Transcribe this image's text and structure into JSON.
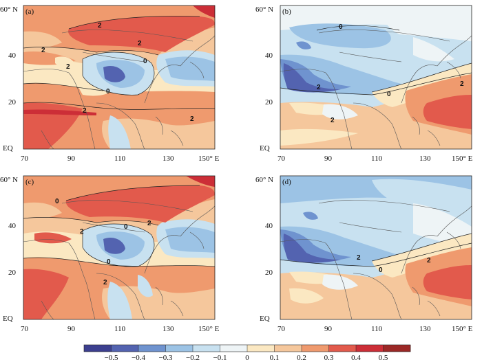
{
  "chart_data": {
    "type": "heatmap",
    "description_units": "anomaly",
    "panels": [
      {
        "id": "a",
        "tag": "(a)",
        "lat_ticks": [
          "60° N",
          "40",
          "20",
          "EQ"
        ],
        "lon_ticks": [
          "70",
          "90",
          "110",
          "130",
          "150° E"
        ],
        "contour_labels": [
          "2",
          "2",
          "2",
          "0",
          "0",
          "2",
          "2",
          "2"
        ],
        "lon_range": [
          70,
          150
        ],
        "lat_range": [
          0,
          60
        ]
      },
      {
        "id": "b",
        "tag": "(b)",
        "lat_ticks": [
          "60° N",
          "40",
          "20",
          "EQ"
        ],
        "lon_ticks": [
          "70",
          "90",
          "110",
          "130",
          "150° E"
        ],
        "contour_labels": [
          "0",
          "2",
          "0",
          "2",
          "2"
        ],
        "lon_range": [
          70,
          150
        ],
        "lat_range": [
          0,
          60
        ]
      },
      {
        "id": "c",
        "tag": "(c)",
        "lat_ticks": [
          "60° N",
          "40",
          "20",
          "EQ"
        ],
        "lon_ticks": [
          "70",
          "90",
          "110",
          "130",
          "150° E"
        ],
        "contour_labels": [
          "0",
          "2",
          "0",
          "0",
          "2",
          "2"
        ],
        "lon_range": [
          70,
          150
        ],
        "lat_range": [
          0,
          60
        ]
      },
      {
        "id": "d",
        "tag": "(d)",
        "lat_ticks": [
          "60° N",
          "40",
          "20",
          "EQ"
        ],
        "lon_ticks": [
          "70",
          "90",
          "110",
          "130",
          "150° E"
        ],
        "contour_labels": [
          "2",
          "0",
          "2"
        ],
        "lon_range": [
          70,
          150
        ],
        "lat_range": [
          0,
          60
        ]
      }
    ],
    "colorbar": {
      "levels": [
        -0.5,
        -0.4,
        -0.3,
        -0.2,
        -0.1,
        0,
        0.1,
        0.2,
        0.3,
        0.4,
        0.5
      ],
      "labels": [
        "−0.5",
        "−0.4",
        "−0.3",
        "−0.2",
        "−0.1",
        "0",
        "0.1",
        "0.2",
        "0.3",
        "0.4",
        "0.5"
      ],
      "colors": [
        "#3c3f8f",
        "#5363b0",
        "#6f93cf",
        "#9cc3e5",
        "#c8e1f0",
        "#eef4f6",
        "#fbe8c2",
        "#f5c79c",
        "#ef9a6e",
        "#e25a4c",
        "#cc2e37",
        "#9b2826"
      ]
    }
  },
  "palette": {
    "darkblue": "#4a4fa0",
    "blue": "#6f93cf",
    "lightblue": "#9cc3e5",
    "paleblue": "#c8e1f0",
    "white": "#eef4f6",
    "cream": "#fbe8c2",
    "peach": "#f5c79c",
    "salmon": "#ef9a6e",
    "red": "#e25a4c",
    "darkred": "#cc2e37"
  }
}
